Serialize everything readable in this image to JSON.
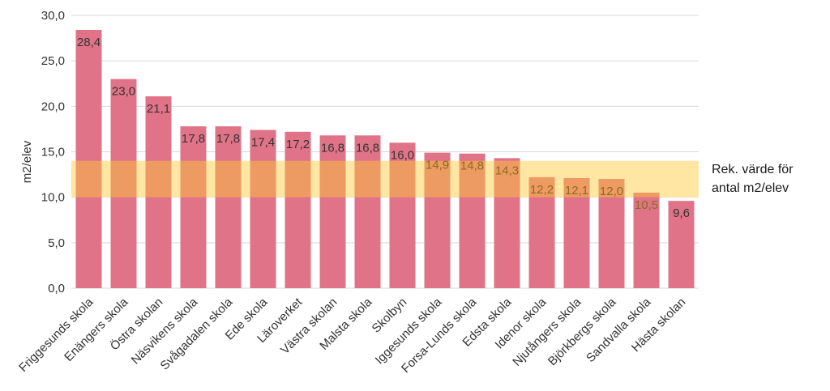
{
  "chart_data": {
    "type": "bar",
    "ylabel": "m2/elev",
    "ylim": [
      0,
      30
    ],
    "ytick_step": 5,
    "ytick_labels": [
      "0,0",
      "5,0",
      "10,0",
      "15,0",
      "20,0",
      "25,0",
      "30,0"
    ],
    "grid": true,
    "categories": [
      "Friggesunds skola",
      "Enängers skola",
      "Östra skolan",
      "Näsvikens skola",
      "Svågadalen skola",
      "Ede skola",
      "Läroverket",
      "Västra skolan",
      "Malsta skola",
      "Skolbyn",
      "Iggesunds skola",
      "Forsa-Lunds skola",
      "Edsta skola",
      "Idenor skola",
      "Njutångers skola",
      "Björkbergs skola",
      "Sandvalla skola",
      "Hästa skolan"
    ],
    "values": [
      28.4,
      23.0,
      21.1,
      17.8,
      17.8,
      17.4,
      17.2,
      16.8,
      16.8,
      16.0,
      14.9,
      14.8,
      14.3,
      12.2,
      12.1,
      12.0,
      10.5,
      9.6
    ],
    "value_labels": [
      "28,4",
      "23,0",
      "21,1",
      "17,8",
      "17,8",
      "17,4",
      "17,2",
      "16,8",
      "16,8",
      "16,0",
      "14,9",
      "14,8",
      "14,3",
      "12,2",
      "12,1",
      "12,0",
      "10,5",
      "9,6"
    ],
    "recommended_band": {
      "range": [
        10,
        14
      ],
      "label_lines": [
        "Rek. värde för",
        "antal m2/elev"
      ]
    },
    "colors": {
      "bar": "#e07387",
      "band": "#ffe6a3",
      "band_over_bar": "#ee9a63",
      "grid": "#d9d9d9",
      "label_default": "#333333",
      "label_in_band": "#8a6d1a"
    }
  }
}
